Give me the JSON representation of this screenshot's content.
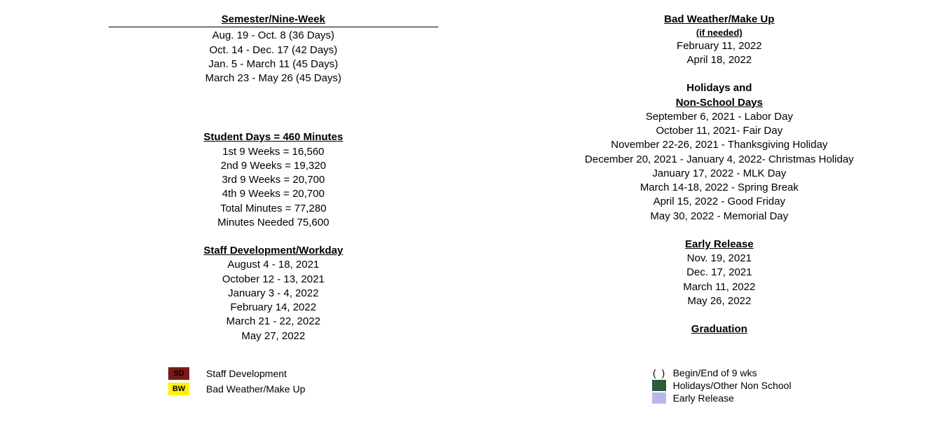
{
  "left": {
    "semester": {
      "title": "Semester/Nine-Week",
      "lines": [
        "Aug. 19 - Oct. 8 (36 Days)",
        "Oct. 14 - Dec. 17 (42 Days)",
        "Jan. 5 - March 11 (45 Days)",
        "March 23 - May 26 (45 Days)"
      ]
    },
    "minutes": {
      "title": "Student Days = 460 Minutes",
      "lines": [
        "1st 9 Weeks = 16,560",
        "2nd 9 Weeks = 19,320",
        "3rd 9 Weeks = 20,700",
        "4th 9 Weeks = 20,700",
        "Total Minutes = 77,280",
        "Minutes Needed 75,600"
      ]
    },
    "staff": {
      "title": "Staff Development/Workday",
      "lines": [
        "August 4 - 18, 2021",
        "October 12 - 13, 2021",
        "January 3 - 4, 2022",
        "February 14, 2022",
        "March 21 - 22, 2022",
        "May 27, 2022"
      ]
    }
  },
  "right": {
    "badweather": {
      "title": "Bad Weather/Make Up",
      "sub": "(if needed)",
      "lines": [
        "February 11, 2022",
        "April 18, 2022"
      ]
    },
    "holidays": {
      "title1": "Holidays  and",
      "title2": "Non-School Days",
      "lines": [
        "September 6, 2021  - Labor Day",
        "October 11, 2021- Fair Day",
        "November 22-26, 2021 - Thanksgiving Holiday",
        "December 20, 2021 - January 4, 2022- Christmas Holiday",
        "January 17, 2022 - MLK Day",
        "March 14-18, 2022 - Spring Break",
        "April 15, 2022 - Good Friday",
        "May 30, 2022 - Memorial Day"
      ]
    },
    "early": {
      "title": "Early Release",
      "lines": [
        "Nov. 19, 2021",
        "Dec. 17, 2021",
        "March 11, 2022",
        "May 26, 2022"
      ]
    },
    "grad": {
      "title": "Graduation"
    }
  },
  "legend": {
    "left": [
      {
        "code": "SD",
        "bg": "#7a1a1a",
        "fg": "#000000",
        "label": "Staff Development"
      },
      {
        "code": "BW",
        "bg": "#fff200",
        "fg": "#000000",
        "label": "Bad Weather/Make Up"
      }
    ],
    "right": [
      {
        "type": "paren",
        "label": "Begin/End of 9 wks"
      },
      {
        "type": "square",
        "bg": "#2e5a3a",
        "label": "Holidays/Other Non School"
      },
      {
        "type": "square",
        "bg": "#b8b8e8",
        "label": "Early Release"
      }
    ]
  }
}
